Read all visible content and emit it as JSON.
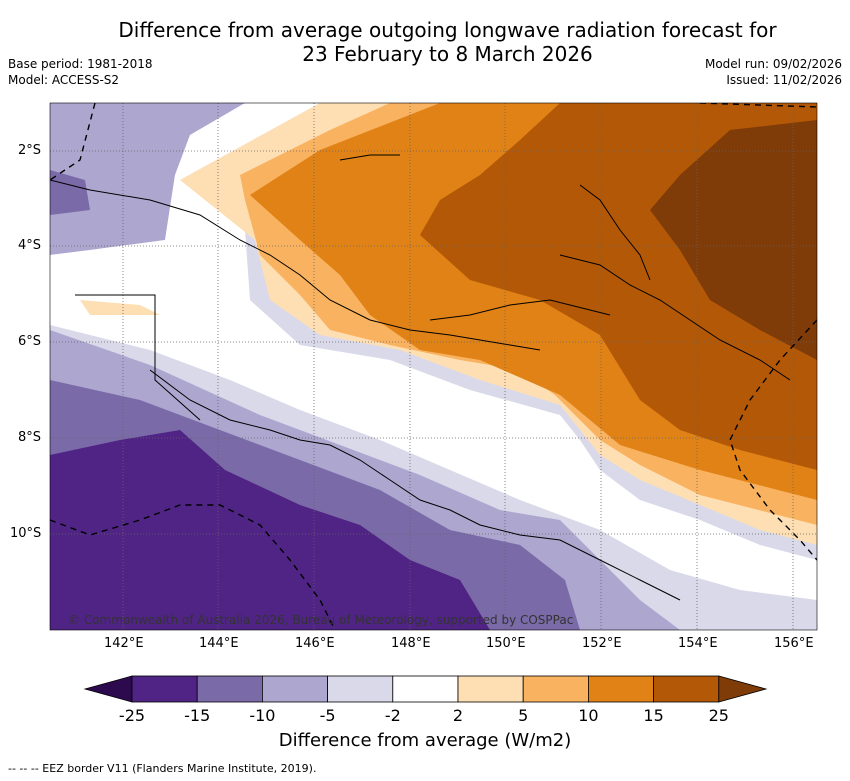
{
  "title_line1": "Difference from average outgoing longwave radiation forecast for",
  "title_line2": "23 February to 8 March 2026",
  "meta_left": {
    "base_period": "Base period: 1981-2018",
    "model": "Model: ACCESS-S2"
  },
  "meta_right": {
    "model_run": "Model run: 09/02/2026",
    "issued": "Issued: 11/02/2026"
  },
  "credit": "© Commonwealth of Australia 2026, Bureau of Meteorology, supported by COSPPac",
  "lat_labels": [
    "2°S",
    "4°S",
    "6°S",
    "8°S",
    "10°S"
  ],
  "lon_labels": [
    "142°E",
    "144°E",
    "146°E",
    "148°E",
    "150°E",
    "152°E",
    "154°E",
    "156°E"
  ],
  "colorbar": {
    "ticks": [
      "-25",
      "-15",
      "-10",
      "-5",
      "-2",
      "2",
      "5",
      "10",
      "15",
      "25"
    ],
    "colors": [
      "#2d0a4e",
      "#4f2484",
      "#7b6aa8",
      "#ada7d0",
      "#d9d9ea",
      "#ffffff",
      "#fedfb4",
      "#f9b25f",
      "#e08216",
      "#b35806",
      "#7f3b08"
    ],
    "label": "Difference from average (W/m2)"
  },
  "footnote": "--  --  -- EEZ border V11 (Flanders Marine Institute, 2019)."
}
